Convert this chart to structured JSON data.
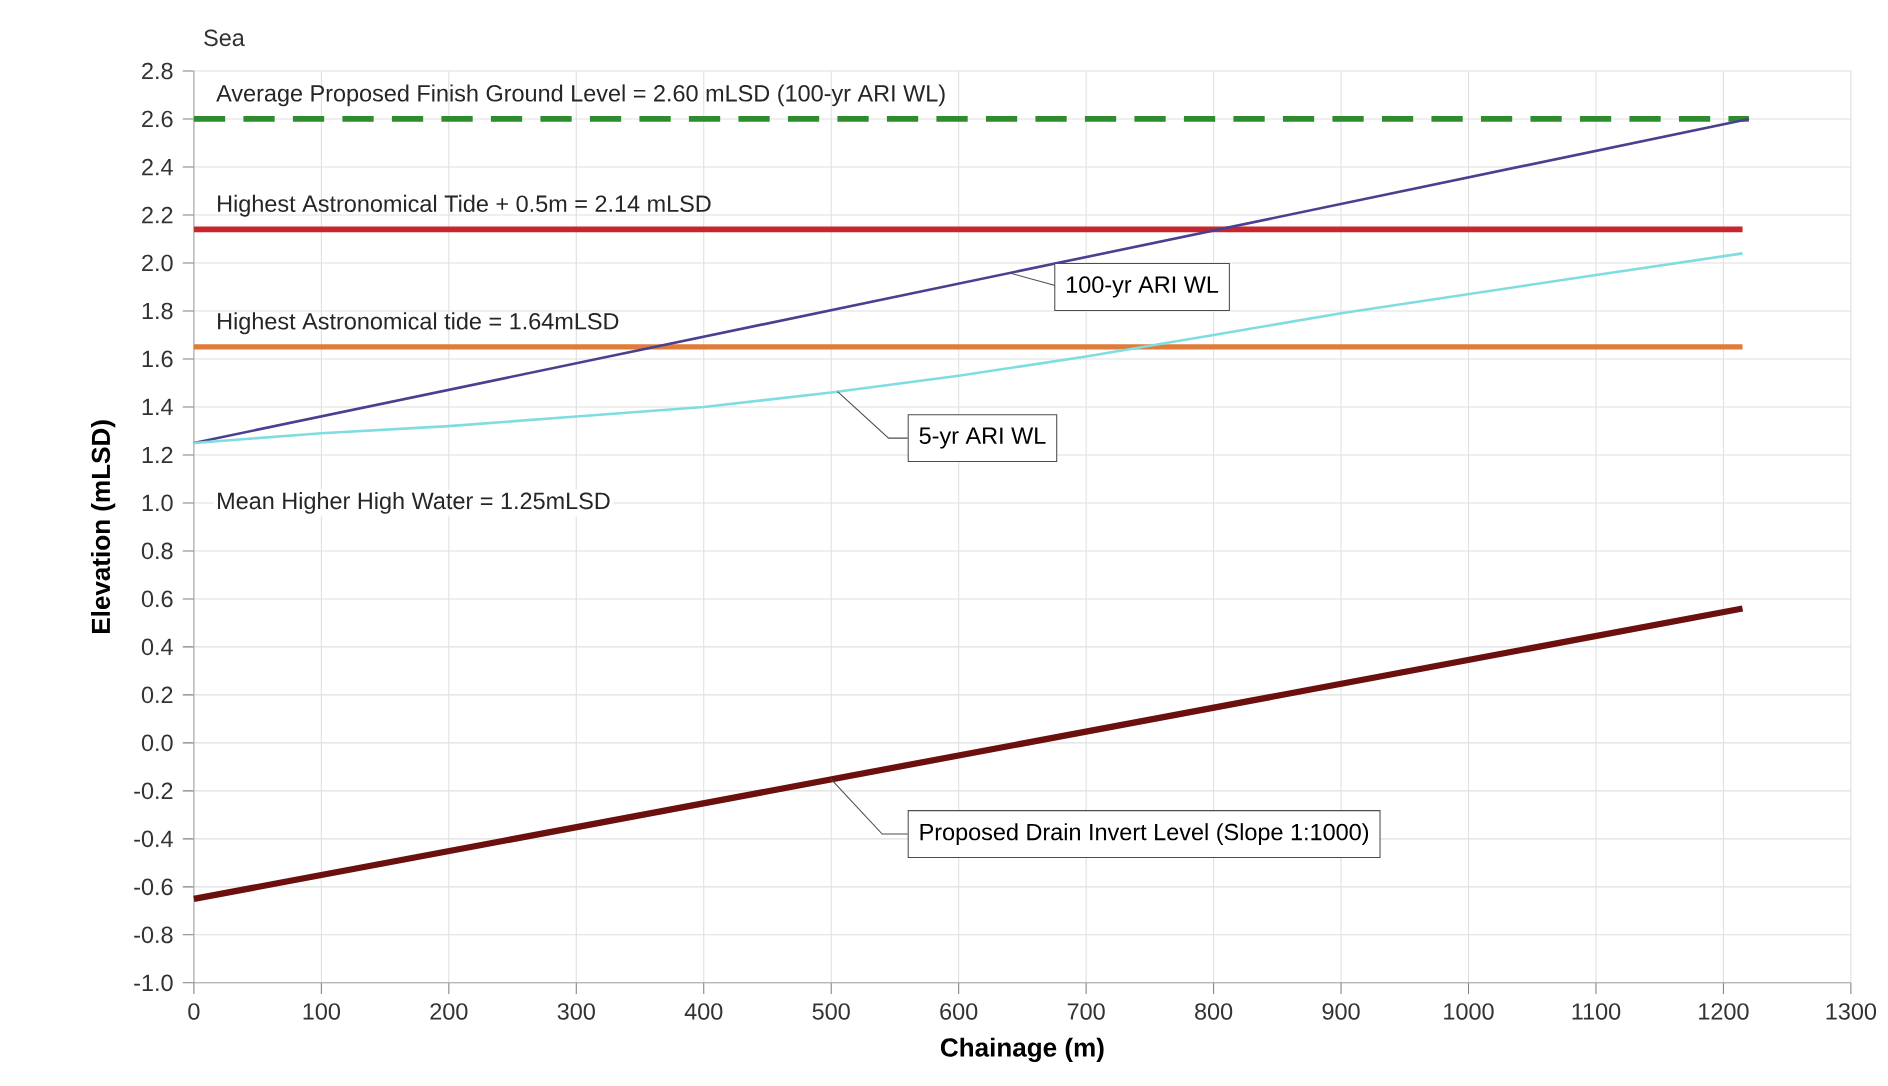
{
  "chart_data": {
    "type": "line",
    "xlabel": "Chainage (m)",
    "ylabel": "Elevation (mLSD)",
    "xlim": [
      0,
      1300
    ],
    "xticks": [
      0,
      100,
      200,
      300,
      400,
      500,
      600,
      700,
      800,
      900,
      1000,
      1100,
      1200,
      1300
    ],
    "ylim": [
      -1.0,
      2.8
    ],
    "yticks": [
      {
        "value": -1.0,
        "label": "-1.0"
      },
      {
        "value": -0.8,
        "label": "-0.8"
      },
      {
        "value": -0.6,
        "label": "-0.6"
      },
      {
        "value": -0.4,
        "label": "-0.4"
      },
      {
        "value": -0.2,
        "label": "-0.2"
      },
      {
        "value": 0,
        "label": "0.0"
      },
      {
        "value": 0.2,
        "label": "0.2"
      },
      {
        "value": 0.4,
        "label": "0.4"
      },
      {
        "value": 0.6,
        "label": "0.6"
      },
      {
        "value": 0.8,
        "label": "0.8"
      },
      {
        "value": 1.0,
        "label": "1.0"
      },
      {
        "value": 1.2,
        "label": "1.2"
      },
      {
        "value": 1.4,
        "label": "1.4"
      },
      {
        "value": 1.6,
        "label": "1.6"
      },
      {
        "value": 1.8,
        "label": "1.8"
      },
      {
        "value": 2.0,
        "label": "2.0"
      },
      {
        "value": 2.2,
        "label": "2.2"
      },
      {
        "value": 2.4,
        "label": "2.4"
      },
      {
        "value": 2.6,
        "label": "2.6"
      },
      {
        "value": 2.8,
        "label": "2.8"
      }
    ],
    "grid": true,
    "series": [
      {
        "name": "Average Proposed Finish Ground Level = 2.60 mLSD (100-yr ARI WL)",
        "color": "#2e8b2e",
        "line_style": "dashed",
        "x": [
          0,
          1220
        ],
        "values": [
          2.6,
          2.6
        ]
      },
      {
        "name": "Highest Astronomical Tide + 0.5m = 2.14 mLSD",
        "color": "#c8262c",
        "x": [
          0,
          1215
        ],
        "values": [
          2.14,
          2.14
        ]
      },
      {
        "name": "Highest Astronomical tide = 1.64mLSD",
        "color": "#e07b39",
        "x": [
          0,
          1215
        ],
        "values": [
          1.65,
          1.65
        ]
      },
      {
        "name": "100-yr ARI WL",
        "color": "#4b3f8f",
        "x": [
          0,
          1220
        ],
        "values": [
          1.25,
          2.6
        ]
      },
      {
        "name": "5-yr ARI WL",
        "color": "#7fdde0",
        "x": [
          0,
          100,
          200,
          300,
          400,
          500,
          600,
          700,
          800,
          900,
          1000,
          1100,
          1215
        ],
        "values": [
          1.25,
          1.29,
          1.32,
          1.36,
          1.4,
          1.46,
          1.53,
          1.61,
          1.7,
          1.79,
          1.87,
          1.95,
          2.04
        ]
      },
      {
        "name": "Proposed Drain Invert Level (Slope 1:1000)",
        "color": "#6b0f0f",
        "x": [
          0,
          1215
        ],
        "values": [
          -0.65,
          0.56
        ]
      }
    ],
    "annotations": [
      "Sea",
      "Mean Higher High Water = 1.25mLSD"
    ]
  }
}
